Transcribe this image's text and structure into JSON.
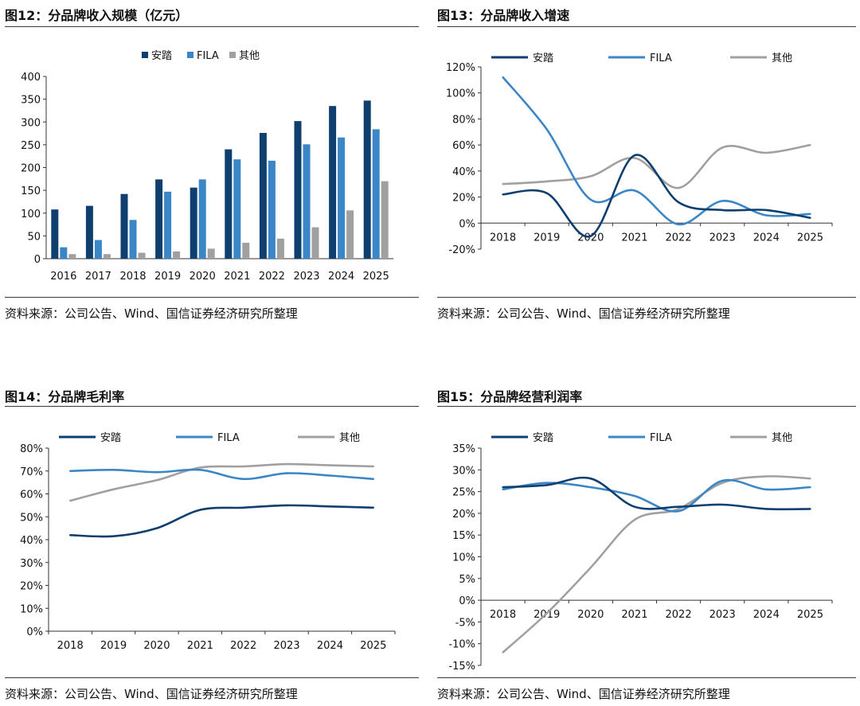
{
  "source_text": "资料来源：公司公告、Wind、国信证券经济研究所整理",
  "colors": {
    "anta": "#0e3f6e",
    "fila": "#3a86c6",
    "other": "#a0a0a0",
    "axis": "#333333"
  },
  "chart_data": [
    {
      "id": "fig12",
      "type": "bar",
      "title": "图12：分品牌收入规模（亿元）",
      "categories": [
        "2016",
        "2017",
        "2018",
        "2019",
        "2020",
        "2021",
        "2022",
        "2023",
        "2024",
        "2025"
      ],
      "series": [
        {
          "name": "安踏",
          "values": [
            108,
            116,
            142,
            174,
            156,
            240,
            276,
            302,
            335,
            347
          ]
        },
        {
          "name": "FILA",
          "values": [
            25,
            41,
            85,
            147,
            174,
            218,
            215,
            251,
            266,
            284
          ]
        },
        {
          "name": "其他",
          "values": [
            10,
            10,
            13,
            16,
            22,
            35,
            44,
            69,
            106,
            170
          ]
        }
      ],
      "ylim": [
        0,
        400
      ],
      "yticks": [
        0,
        50,
        100,
        150,
        200,
        250,
        300,
        350,
        400
      ],
      "ytick_labels": [
        "0",
        "50",
        "100",
        "150",
        "200",
        "250",
        "300",
        "350",
        "400"
      ],
      "legend": "top-center",
      "xlabel": "",
      "ylabel": ""
    },
    {
      "id": "fig13",
      "type": "line",
      "title": "图13：分品牌收入增速",
      "categories": [
        "2018",
        "2019",
        "2020",
        "2021",
        "2022",
        "2023",
        "2024",
        "2025"
      ],
      "series": [
        {
          "name": "安踏",
          "values": [
            22,
            23,
            -10,
            52,
            16,
            10,
            10,
            4
          ]
        },
        {
          "name": "FILA",
          "values": [
            112,
            72,
            18,
            25,
            -1,
            17,
            6,
            7
          ]
        },
        {
          "name": "其他",
          "values": [
            30,
            32,
            36,
            50,
            27,
            58,
            54,
            60
          ]
        }
      ],
      "ylim": [
        -20,
        120
      ],
      "yticks": [
        -20,
        0,
        20,
        40,
        60,
        80,
        100,
        120
      ],
      "ytick_labels": [
        "-20%",
        "0%",
        "20%",
        "40%",
        "60%",
        "80%",
        "100%",
        "120%"
      ],
      "legend": "top",
      "xlabel": "",
      "ylabel": ""
    },
    {
      "id": "fig14",
      "type": "line",
      "title": "图14：分品牌毛利率",
      "categories": [
        "2018",
        "2019",
        "2020",
        "2021",
        "2022",
        "2023",
        "2024",
        "2025"
      ],
      "series": [
        {
          "name": "安踏",
          "values": [
            42,
            41.5,
            45,
            53,
            54,
            55,
            54.5,
            54
          ]
        },
        {
          "name": "FILA",
          "values": [
            70,
            70.5,
            69.5,
            70.5,
            66.5,
            69,
            68,
            66.5
          ]
        },
        {
          "name": "其他",
          "values": [
            57,
            62,
            66,
            71.5,
            72,
            73,
            72.5,
            72
          ]
        }
      ],
      "ylim": [
        0,
        80
      ],
      "yticks": [
        0,
        10,
        20,
        30,
        40,
        50,
        60,
        70,
        80
      ],
      "ytick_labels": [
        "0%",
        "10%",
        "20%",
        "30%",
        "40%",
        "50%",
        "60%",
        "70%",
        "80%"
      ],
      "legend": "top",
      "xlabel": "",
      "ylabel": ""
    },
    {
      "id": "fig15",
      "type": "line",
      "title": "图15：分品牌经营利润率",
      "categories": [
        "2018",
        "2019",
        "2020",
        "2021",
        "2022",
        "2023",
        "2024",
        "2025"
      ],
      "series": [
        {
          "name": "安踏",
          "values": [
            26,
            26.5,
            28,
            21.5,
            21.5,
            22,
            21,
            21
          ]
        },
        {
          "name": "FILA",
          "values": [
            25.5,
            27,
            26,
            24,
            20.5,
            27.5,
            25.5,
            26
          ]
        },
        {
          "name": "其他",
          "values": [
            -12,
            -3,
            7.5,
            18.5,
            21,
            27,
            28.5,
            28
          ]
        }
      ],
      "ylim": [
        -15,
        35
      ],
      "yticks": [
        -15,
        -10,
        -5,
        0,
        5,
        10,
        15,
        20,
        25,
        30,
        35
      ],
      "ytick_labels": [
        "-15%",
        "-10%",
        "-5%",
        "0%",
        "5%",
        "10%",
        "15%",
        "20%",
        "25%",
        "30%",
        "35%"
      ],
      "legend": "top",
      "xlabel": "",
      "ylabel": ""
    }
  ]
}
